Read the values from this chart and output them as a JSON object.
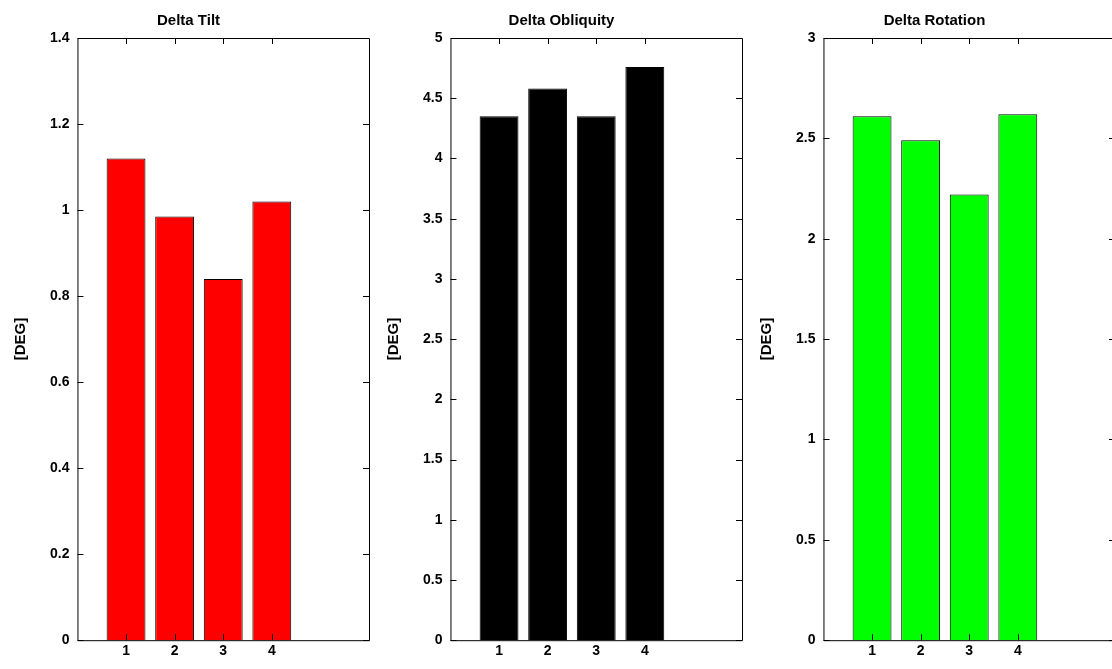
{
  "chart_data": [
    {
      "type": "bar",
      "title": "Delta Tilt",
      "ylabel": "[DEG]",
      "x": [
        1,
        2,
        3,
        4
      ],
      "values": [
        1.12,
        0.985,
        0.84,
        1.02
      ],
      "color": "#ff0000",
      "xlim": [
        0,
        6
      ],
      "xticks": [
        1,
        2,
        3,
        4
      ],
      "ylim": [
        0,
        1.4
      ],
      "yticks": [
        0,
        0.2,
        0.4,
        0.6,
        0.8,
        1,
        1.2,
        1.4
      ],
      "grid": false,
      "legend": false
    },
    {
      "type": "bar",
      "title": "Delta Obliquity",
      "ylabel": "[DEG]",
      "x": [
        1,
        2,
        3,
        4
      ],
      "values": [
        4.35,
        4.58,
        4.35,
        4.76
      ],
      "color": "#000000",
      "xlim": [
        0,
        6
      ],
      "xticks": [
        1,
        2,
        3,
        4
      ],
      "ylim": [
        0,
        5
      ],
      "yticks": [
        0,
        0.5,
        1,
        1.5,
        2,
        2.5,
        3,
        3.5,
        4,
        4.5,
        5
      ],
      "grid": false,
      "legend": false
    },
    {
      "type": "bar",
      "title": "Delta Rotation",
      "ylabel": "[DEG]",
      "x": [
        1,
        2,
        3,
        4
      ],
      "values": [
        2.61,
        2.49,
        2.22,
        2.62
      ],
      "color": "#00ff00",
      "xlim": [
        0,
        6
      ],
      "xticks": [
        1,
        2,
        3,
        4
      ],
      "ylim": [
        0,
        3
      ],
      "yticks": [
        0,
        0.5,
        1,
        1.5,
        2,
        2.5,
        3
      ],
      "grid": false,
      "legend": false
    }
  ]
}
